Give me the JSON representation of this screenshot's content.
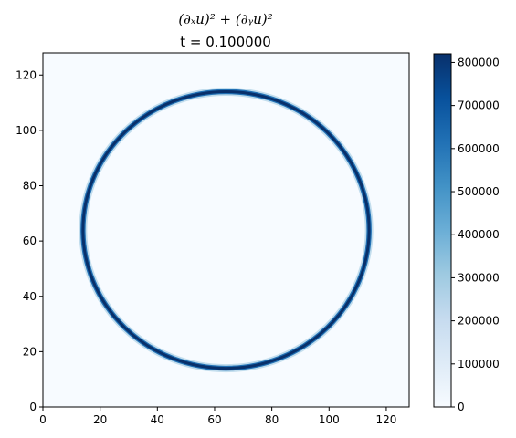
{
  "chart_data": {
    "type": "heatmap",
    "title_line1": "(∂ₓu)² + (∂ᵧu)²",
    "title_line2": "t = 0.100000",
    "xlabel": "",
    "ylabel": "",
    "xlim": [
      0,
      128
    ],
    "ylim": [
      0,
      128
    ],
    "x_ticks": [
      0,
      20,
      40,
      60,
      80,
      100,
      120
    ],
    "y_ticks": [
      0,
      20,
      40,
      60,
      80,
      100,
      120
    ],
    "colorbar": {
      "colormap": "Blues",
      "range": [
        0,
        820000
      ],
      "ticks": [
        0,
        100000,
        200000,
        300000,
        400000,
        500000,
        600000,
        700000,
        800000
      ],
      "tick_labels": [
        "0",
        "100000",
        "200000",
        "300000",
        "400000",
        "500000",
        "600000",
        "700000",
        "800000"
      ]
    },
    "field": {
      "description": "ring",
      "center": [
        64,
        64
      ],
      "radius": 50,
      "peak_value": 820000,
      "background_value": 0
    },
    "colors": {
      "low": "#f7fbff",
      "high": "#08306b"
    }
  }
}
